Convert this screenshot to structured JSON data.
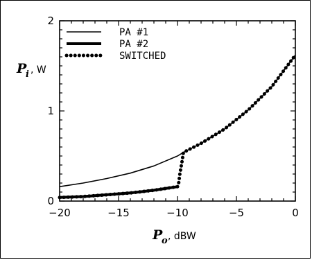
{
  "chart_data": {
    "type": "line",
    "title": "",
    "xlabel": {
      "symbol": "P",
      "subscript": "o",
      "unit": ", dBW"
    },
    "ylabel": {
      "symbol": "P",
      "subscript": "i",
      "unit": ", W"
    },
    "xlim": [
      -20,
      0
    ],
    "ylim": [
      0,
      2
    ],
    "x_ticks": [
      -20,
      -15,
      -10,
      -5,
      0
    ],
    "y_ticks": [
      0,
      1,
      2
    ],
    "x_tick_labels": [
      "−20",
      "−15",
      "−10",
      "−5",
      "0"
    ],
    "y_tick_labels": [
      "0",
      "1",
      "2"
    ],
    "legend_position": "top-left",
    "grid": false,
    "series": [
      {
        "name": "PA #1",
        "style": "thin",
        "x": [
          -20,
          -18,
          -16,
          -14,
          -12,
          -10,
          -9.5,
          -8,
          -6,
          -4,
          -2,
          0
        ],
        "y": [
          0.16,
          0.2,
          0.25,
          0.31,
          0.39,
          0.5,
          0.54,
          0.64,
          0.8,
          1.01,
          1.27,
          1.62
        ]
      },
      {
        "name": "PA #2",
        "style": "thick",
        "x": [
          -20,
          -18,
          -16,
          -14,
          -12,
          -10
        ],
        "y": [
          0.04,
          0.05,
          0.07,
          0.09,
          0.12,
          0.16
        ]
      },
      {
        "name": "SWITCHED",
        "style": "dotted",
        "x": [
          -20,
          -18,
          -16,
          -14,
          -12,
          -10,
          -9.9,
          -9.8,
          -9.6,
          -9.5,
          -8,
          -6,
          -4,
          -2,
          0
        ],
        "y": [
          0.04,
          0.05,
          0.07,
          0.09,
          0.12,
          0.16,
          0.2,
          0.3,
          0.45,
          0.54,
          0.64,
          0.8,
          1.01,
          1.27,
          1.62
        ]
      }
    ]
  }
}
